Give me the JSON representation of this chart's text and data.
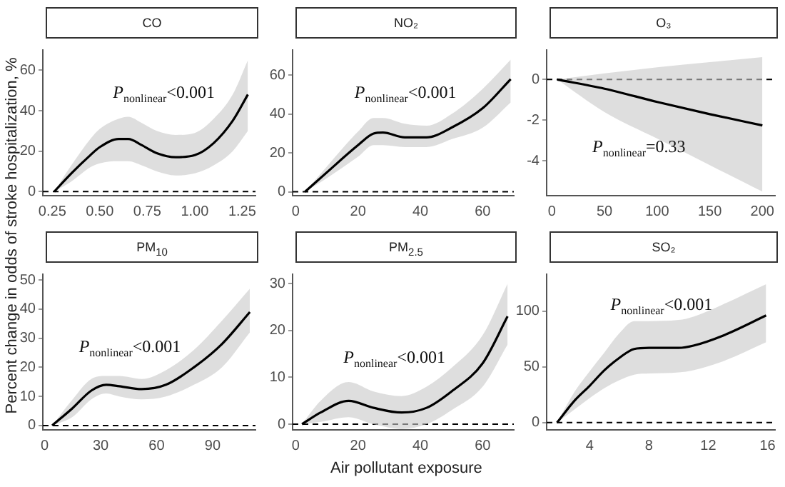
{
  "chart_data": [
    {
      "type": "line",
      "title": "CO",
      "ylabel": "Percent change in odds of stroke hospitalization, %",
      "annotations": [
        "P$_{nonlinear}$<0.001"
      ],
      "xlim": [
        0.2,
        1.32
      ],
      "xticks": [
        0.25,
        {
          "value": 0.5,
          "label": "0.50"
        },
        0.75,
        {
          "value": 1,
          "label": "1.00"
        },
        1.25
      ],
      "ylim": [
        -2,
        70
      ],
      "yticks": [
        0,
        20,
        40,
        60
      ],
      "ref_lines": [
        {
          "axis": "y",
          "value": 0,
          "color": "#000000",
          "line_style": "dashed"
        }
      ],
      "series": [
        {
          "color": "#000000",
          "x": [
            0.26,
            0.35,
            0.45,
            0.5,
            0.6,
            0.65,
            0.72,
            0.8,
            0.9,
            1.0,
            1.1,
            1.2,
            1.28
          ],
          "values": [
            0,
            9,
            18,
            22,
            26,
            26,
            23,
            19,
            17,
            18,
            24,
            35,
            48
          ],
          "lower": [
            0,
            5,
            12,
            14,
            15,
            15,
            13,
            10,
            8,
            9,
            13,
            20,
            30
          ],
          "upper": [
            0,
            13,
            26,
            31,
            36,
            37,
            34,
            30,
            28,
            29,
            36,
            48,
            65
          ]
        }
      ]
    },
    {
      "type": "line",
      "title": "NO₂",
      "annotations": [
        "P$_{nonlinear}$<0.001"
      ],
      "xlim": [
        -1,
        70
      ],
      "xticks": [
        0,
        20,
        40,
        60
      ],
      "ylim": [
        -2,
        73
      ],
      "yticks": [
        0,
        20,
        40,
        60
      ],
      "ref_lines": [
        {
          "axis": "y",
          "value": 0,
          "color": "#000000",
          "line_style": "dashed"
        }
      ],
      "series": [
        {
          "color": "#000000",
          "x": [
            3,
            10,
            20,
            25,
            28,
            35,
            42,
            50,
            60,
            69
          ],
          "values": [
            0,
            10,
            24,
            30,
            30.5,
            28,
            28,
            33,
            43,
            58
          ],
          "lower": [
            0,
            7,
            18,
            24,
            24,
            23,
            23,
            27,
            33,
            46
          ],
          "upper": [
            0,
            13,
            31,
            38,
            38,
            35,
            34,
            40,
            53,
            68
          ]
        }
      ]
    },
    {
      "type": "line",
      "title": "O₃",
      "annotations": [
        "P$_{nonlinear}$=0.33"
      ],
      "xlim": [
        -5,
        212
      ],
      "xticks": [
        0,
        50,
        100,
        150,
        200
      ],
      "ylim": [
        -5.7,
        1.45
      ],
      "yticks": [
        -4,
        -2,
        0
      ],
      "ref_lines": [
        {
          "axis": "y",
          "value": 0,
          "color": "#000000",
          "line_style": "dashed"
        }
      ],
      "series": [
        {
          "color": "#000000",
          "x": [
            5,
            50,
            100,
            150,
            200
          ],
          "values": [
            0,
            -0.45,
            -1.1,
            -1.7,
            -2.25
          ],
          "lower": [
            0,
            -1.6,
            -2.9,
            -4.2,
            -5.5
          ],
          "upper": [
            0,
            0.3,
            0.6,
            0.85,
            1.1
          ]
        }
      ]
    },
    {
      "type": "line",
      "title": "PM$_{10}$",
      "annotations": [
        "P$_{nonlinear}$<0.001"
      ],
      "xlim": [
        -1,
        113
      ],
      "xticks": [
        0,
        30,
        60,
        90
      ],
      "ylim": [
        -1.5,
        52
      ],
      "yticks": [
        0,
        10,
        20,
        30,
        40,
        50
      ],
      "ref_lines": [
        {
          "axis": "y",
          "value": 0,
          "color": "#000000",
          "line_style": "dashed"
        }
      ],
      "series": [
        {
          "color": "#000000",
          "x": [
            4,
            15,
            25,
            33,
            40,
            52,
            65,
            80,
            95,
            110
          ],
          "values": [
            0,
            6,
            12,
            14,
            13.5,
            12.5,
            14,
            20,
            28,
            39
          ],
          "lower": [
            0,
            3,
            9,
            11,
            10,
            9,
            10,
            14,
            20,
            32
          ],
          "upper": [
            0,
            9,
            16,
            17,
            17,
            16,
            19,
            26,
            36,
            47
          ]
        }
      ]
    },
    {
      "type": "line",
      "title": "PM$_{2.5}$",
      "xlabel": "Air pollutant exposure",
      "annotations": [
        "P$_{nonlinear}$<0.001"
      ],
      "xlim": [
        -1,
        70
      ],
      "xticks": [
        0,
        20,
        40,
        60
      ],
      "ylim": [
        -1.2,
        32
      ],
      "yticks": [
        0,
        10,
        20,
        30
      ],
      "ref_lines": [
        {
          "axis": "y",
          "value": 0,
          "color": "#000000",
          "line_style": "dashed"
        }
      ],
      "series": [
        {
          "color": "#000000",
          "x": [
            2,
            8,
            17,
            25,
            34,
            42,
            50,
            60,
            68
          ],
          "values": [
            0,
            2.5,
            5,
            3.5,
            2.5,
            3.5,
            7,
            13,
            23
          ],
          "lower": [
            0,
            0.5,
            1.5,
            0,
            -1,
            0,
            3,
            8,
            17
          ],
          "upper": [
            0,
            5,
            9,
            7,
            6,
            8,
            12,
            19,
            30
          ]
        }
      ]
    },
    {
      "type": "line",
      "title": "SO₂",
      "annotations": [
        "P$_{nonlinear}$<0.001"
      ],
      "xlim": [
        1.1,
        16.5
      ],
      "xticks": [
        4,
        8,
        12,
        16
      ],
      "ylim": [
        -6.5,
        133
      ],
      "yticks": [
        0,
        50,
        100
      ],
      "ref_lines": [
        {
          "axis": "y",
          "value": 0,
          "color": "#000000",
          "line_style": "dashed"
        }
      ],
      "series": [
        {
          "color": "#000000",
          "x": [
            1.8,
            3,
            4,
            5,
            6,
            7,
            8,
            10,
            11,
            13,
            15.9
          ],
          "values": [
            0,
            20,
            33,
            47,
            58,
            66,
            67,
            67,
            69,
            78,
            96
          ],
          "lower": [
            0,
            12,
            22,
            31,
            38,
            43,
            44,
            45,
            47,
            55,
            72
          ],
          "upper": [
            0,
            28,
            46,
            63,
            80,
            91,
            91,
            92,
            95,
            106,
            124
          ]
        }
      ]
    }
  ]
}
